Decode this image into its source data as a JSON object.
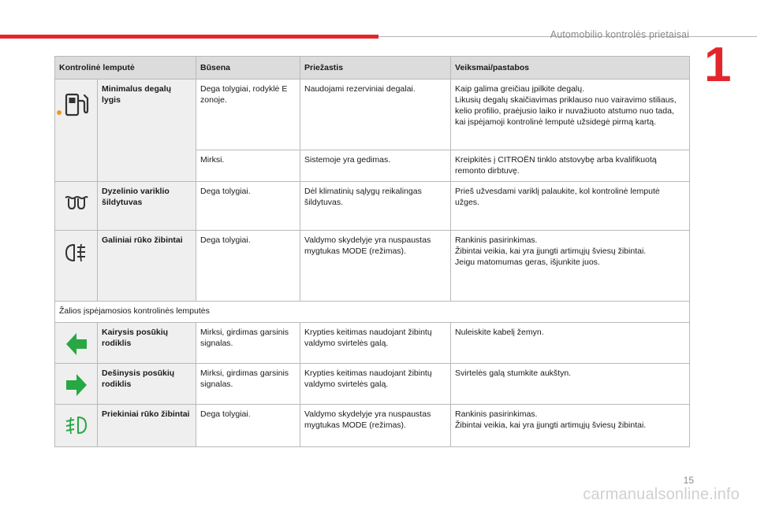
{
  "header": {
    "chapter_title": "Automobilio kontrolės prietaisai",
    "chapter_number": "1"
  },
  "footer": {
    "page_number": "15",
    "watermark": "carmanualsonline.info"
  },
  "table": {
    "columns": [
      "Kontrolinė lemputė",
      "Būsena",
      "Priežastis",
      "Veiksmai/pastabos"
    ],
    "rows_group1": [
      {
        "icon": "fuel-pump-icon",
        "name": "Minimalus degalų lygis",
        "entries": [
          {
            "state": "Dega tolygiai, rodyklė E zonoje.",
            "cause": "Naudojami rezerviniai degalai.",
            "action": "Kaip galima greičiau įpilkite degalų.\nLikusių degalų skaičiavimas priklauso nuo vairavimo stiliaus, kelio profilio, praėjusio laiko ir nuvažiuoto atstumo nuo tada, kai įspėjamoji kontrolinė lemputė užsidegė pirmą kartą."
          },
          {
            "state": "Mirksi.",
            "cause": "Sistemoje yra gedimas.",
            "action": "Kreipkitės į CITROËN tinklo atstovybę arba kvalifikuotą remonto dirbtuvę."
          }
        ]
      },
      {
        "icon": "glow-plug-icon",
        "name": "Dyzelinio variklio šildytuvas",
        "state": "Dega tolygiai.",
        "cause": "Dėl klimatinių sąlygų reikalingas šildytuvas.",
        "action": "Prieš užvesdami variklį palaukite, kol kontrolinė lemputė užges."
      },
      {
        "icon": "rear-fog-light-icon",
        "name": "Galiniai rūko žibintai",
        "state": "Dega tolygiai.",
        "cause": "Valdymo skydelyje yra nuspaustas mygtukas MODE (režimas).",
        "action": "Rankinis pasirinkimas.\nŽibintai veikia, kai yra įjungti artimųjų šviesų žibintai.\nJeigu matomumas geras, išjunkite juos."
      }
    ],
    "section_label": "Žalios įspėjamosios kontrolinės lemputės",
    "rows_group2": [
      {
        "icon": "left-arrow-icon",
        "name": "Kairysis posūkių rodiklis",
        "state": "Mirksi, girdimas garsinis signalas.",
        "cause": "Krypties keitimas naudojant žibintų valdymo svirtelės galą.",
        "action": "Nuleiskite kabelį žemyn."
      },
      {
        "icon": "right-arrow-icon",
        "name": "Dešinysis posūkių rodiklis",
        "state": "Mirksi, girdimas garsinis signalas.",
        "cause": "Krypties keitimas naudojant žibintų valdymo svirtelės galą.",
        "action": "Svirtelės galą stumkite aukštyn."
      },
      {
        "icon": "front-fog-light-icon",
        "name": "Priekiniai rūko žibintai",
        "state": "Dega tolygiai.",
        "cause": "Valdymo skydelyje yra nuspaustas mygtukas MODE (režimas).",
        "action": "Rankinis pasirinkimas.\nŽibintai veikia, kai yra įjungti artimųjų šviesų žibintai."
      }
    ]
  },
  "colors": {
    "accent_red": "#e3262b",
    "warning_orange": "#f29a1e",
    "indicator_green": "#27a844",
    "header_gray": "#dcdcdc",
    "cell_gray": "#efefef"
  }
}
